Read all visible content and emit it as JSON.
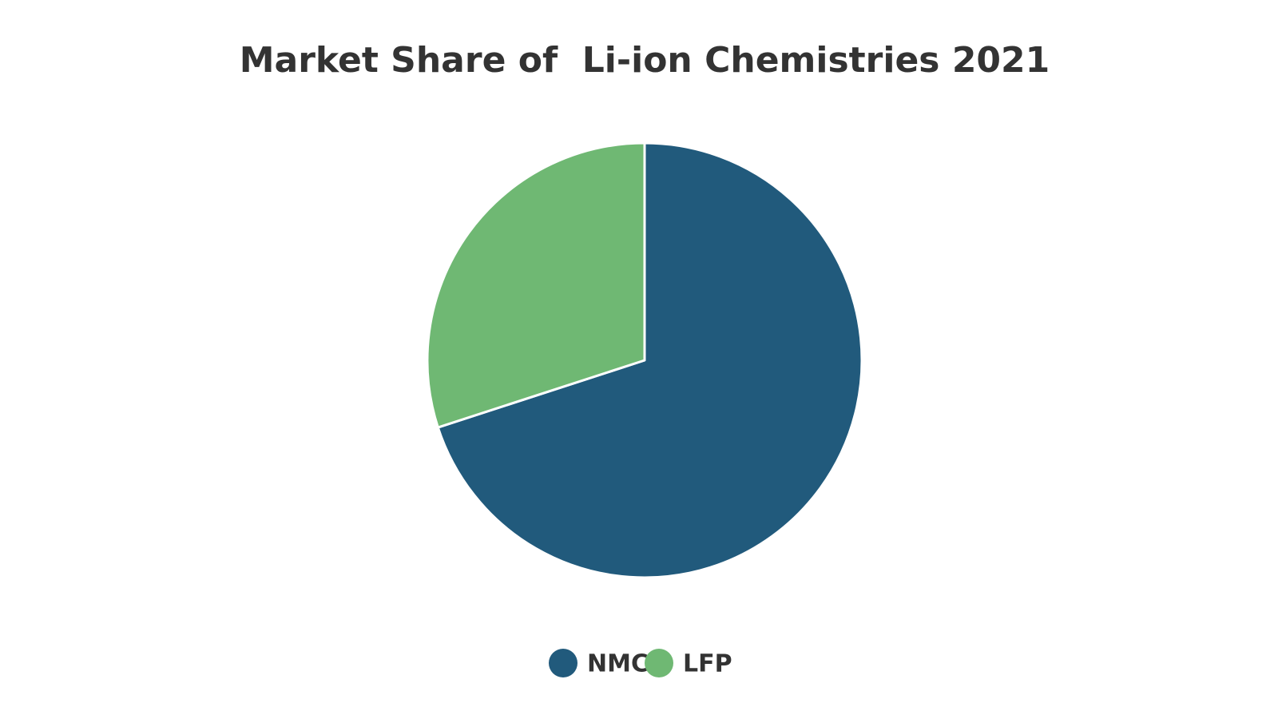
{
  "chart_data": {
    "type": "pie",
    "title": "Market Share of  Li-ion Chemistries 2021",
    "categories": [
      "NMC",
      "LFP"
    ],
    "values": [
      70,
      30
    ],
    "colors": [
      "#215a7c",
      "#6fb873"
    ],
    "legend": "bottom"
  }
}
